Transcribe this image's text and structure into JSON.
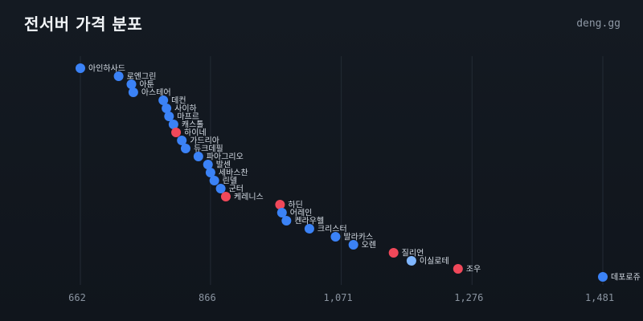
{
  "header": {
    "title": "전서버 가격 분포",
    "brand": "deng.gg"
  },
  "colors": {
    "normal": "#3b82f6",
    "highlight": "#f0485a",
    "light": "#7fb6ff",
    "grid": "#232b35"
  },
  "chart_data": {
    "type": "scatter",
    "title": "전서버 가격 분포",
    "xlabel": "",
    "ylabel": "",
    "xlim": [
      662,
      1481
    ],
    "xticks": [
      {
        "value": 662,
        "label": "662"
      },
      {
        "value": 866,
        "label": "866"
      },
      {
        "value": 1071,
        "label": "1,071"
      },
      {
        "value": 1276,
        "label": "1,276"
      },
      {
        "value": 1481,
        "label": "1,481"
      }
    ],
    "grid": true,
    "points": [
      {
        "name": "아인하사드",
        "x": 662,
        "type": "normal"
      },
      {
        "name": "로엔그린",
        "x": 722,
        "type": "normal"
      },
      {
        "name": "아툰",
        "x": 742,
        "type": "normal"
      },
      {
        "name": "아스테어",
        "x": 745,
        "type": "normal"
      },
      {
        "name": "데컨",
        "x": 792,
        "type": "normal"
      },
      {
        "name": "사이하",
        "x": 797,
        "type": "normal"
      },
      {
        "name": "마프르",
        "x": 801,
        "type": "normal"
      },
      {
        "name": "캐스톨",
        "x": 808,
        "type": "normal"
      },
      {
        "name": "하이네",
        "x": 812,
        "type": "highlight"
      },
      {
        "name": "가드리아",
        "x": 821,
        "type": "normal"
      },
      {
        "name": "듀크데필",
        "x": 827,
        "type": "normal"
      },
      {
        "name": "파아그리오",
        "x": 847,
        "type": "normal"
      },
      {
        "name": "발센",
        "x": 862,
        "type": "normal"
      },
      {
        "name": "세바스찬",
        "x": 866,
        "type": "normal"
      },
      {
        "name": "린델",
        "x": 872,
        "type": "normal"
      },
      {
        "name": "군터",
        "x": 882,
        "type": "normal"
      },
      {
        "name": "케레니스",
        "x": 890,
        "type": "highlight"
      },
      {
        "name": "하딘",
        "x": 975,
        "type": "highlight"
      },
      {
        "name": "어레인",
        "x": 978,
        "type": "normal"
      },
      {
        "name": "켄라우헬",
        "x": 985,
        "type": "normal"
      },
      {
        "name": "크리스터",
        "x": 1021,
        "type": "normal"
      },
      {
        "name": "발라카스",
        "x": 1062,
        "type": "normal"
      },
      {
        "name": "오렌",
        "x": 1090,
        "type": "normal"
      },
      {
        "name": "질리언",
        "x": 1153,
        "type": "highlight"
      },
      {
        "name": "이실로테",
        "x": 1181,
        "type": "light"
      },
      {
        "name": "조우",
        "x": 1254,
        "type": "highlight"
      },
      {
        "name": "데포로쥬",
        "x": 1481,
        "type": "normal"
      }
    ]
  }
}
